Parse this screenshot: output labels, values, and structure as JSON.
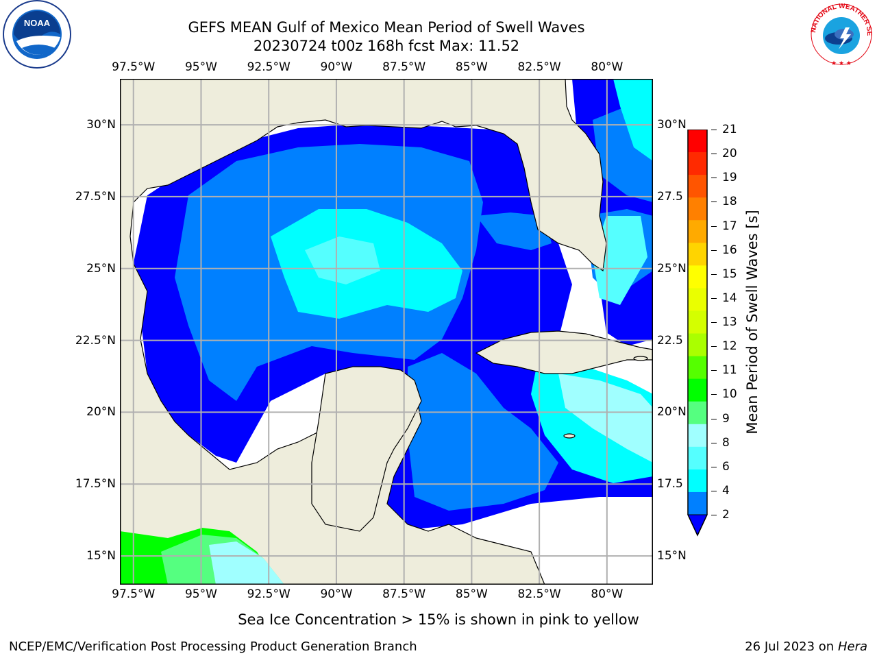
{
  "title": {
    "line1": "GEFS MEAN Gulf of Mexico Mean Period of Swell Waves",
    "line2": "20230724 t00z 168h fcst   Max: 11.52"
  },
  "logos": {
    "left": {
      "icon": "noaa-logo-icon",
      "text": "NOAA"
    },
    "right": {
      "icon": "nws-logo-icon",
      "text": "NATIONAL WEATHER SERVICE"
    }
  },
  "map": {
    "lon_labels": [
      "97.5°W",
      "95°W",
      "92.5°W",
      "90°W",
      "87.5°W",
      "85°W",
      "82.5°W",
      "80°W"
    ],
    "lat_labels_left": [
      "30°N",
      "27.5°N",
      "25°N",
      "22.5°N",
      "20°N",
      "17.5°N",
      "15°N"
    ],
    "lat_labels_right": [
      "30°N",
      "27.5",
      "25°N",
      "22.5",
      "20°N",
      "17.5",
      "15°N"
    ],
    "lon_range": [
      -98,
      -78.3
    ],
    "lat_range": [
      14,
      31.6
    ],
    "land_color": "#eeeddc",
    "grid_color": "#b0b0b0"
  },
  "colorbar": {
    "label": "Mean Period of Swell Waves [s]",
    "ticks": [
      "21",
      "20",
      "19",
      "18",
      "17",
      "16",
      "15",
      "14",
      "13",
      "12",
      "11",
      "10",
      "9",
      "8",
      "6",
      "4",
      "2"
    ],
    "colors": [
      "#ff0000",
      "#ff2a00",
      "#ff5500",
      "#ff8000",
      "#ffaa00",
      "#ffd400",
      "#ffff00",
      "#eaff00",
      "#d4ff00",
      "#aaff00",
      "#55ff00",
      "#00ff00",
      "#55ff80",
      "#a0ffff",
      "#55ffff",
      "#00ffff",
      "#0080ff"
    ],
    "extend_color": "#0000ff"
  },
  "subtitle": "Sea Ice Concentration > 15% is shown in pink to yellow",
  "footer": {
    "left": "NCEP/EMC/Verification Post Processing Product Generation Branch",
    "date": "26 Jul 2023 on ",
    "host": "Hera"
  }
}
